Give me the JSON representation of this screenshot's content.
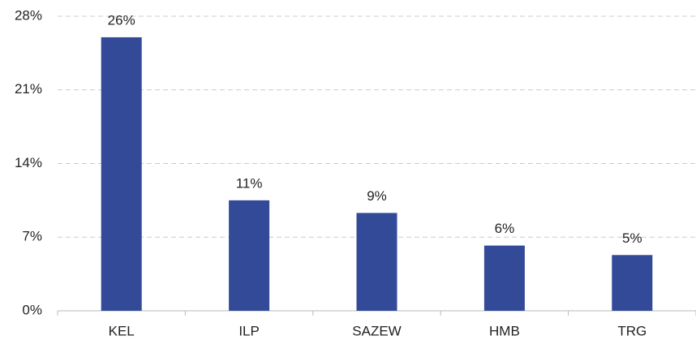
{
  "chart_data": {
    "type": "bar",
    "categories": [
      "KEL",
      "ILP",
      "SAZEW",
      "HMB",
      "TRG"
    ],
    "values": [
      26,
      10.5,
      9.3,
      6.2,
      5.3
    ],
    "value_labels": [
      "26%",
      "11%",
      "9%",
      "6%",
      "5%"
    ],
    "color": "#324a98",
    "ylim": [
      0,
      28
    ],
    "yticks": [
      {
        "value": 0,
        "label": "0%"
      },
      {
        "value": 7,
        "label": "7%"
      },
      {
        "value": 14,
        "label": "14%"
      },
      {
        "value": 21,
        "label": "21%"
      },
      {
        "value": 28,
        "label": "28%"
      }
    ],
    "grid": true
  }
}
